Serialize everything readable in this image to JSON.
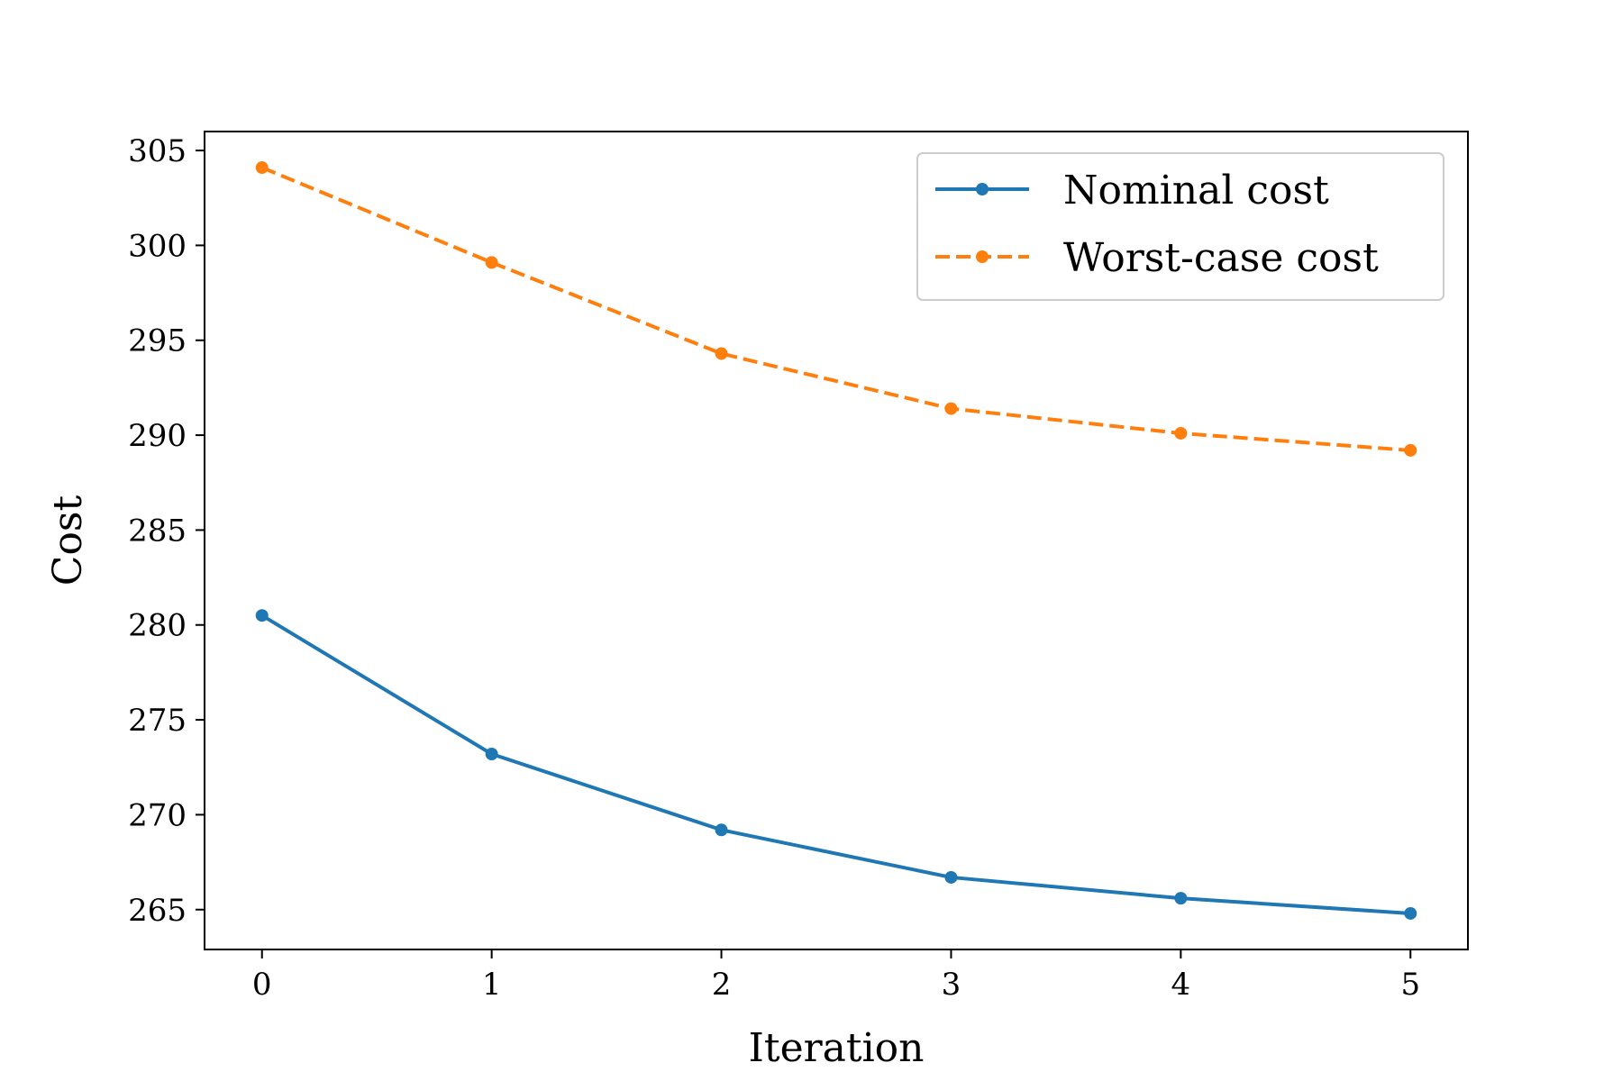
{
  "chart_data": {
    "type": "line",
    "title": "",
    "xlabel": "Iteration",
    "ylabel": "Cost",
    "x": [
      0,
      1,
      2,
      3,
      4,
      5
    ],
    "xlim": [
      -0.25,
      5.25
    ],
    "ylim": [
      262.9,
      306.0
    ],
    "xticks": [
      "0",
      "1",
      "2",
      "3",
      "4",
      "5"
    ],
    "yticks": [
      "265",
      "270",
      "275",
      "280",
      "285",
      "290",
      "295",
      "300",
      "305"
    ],
    "grid": false,
    "legend_position": "top-right",
    "series": [
      {
        "name": "Nominal cost",
        "style": "solid",
        "marker": "circle",
        "color": "#1f77b4",
        "values": [
          280.5,
          273.2,
          269.2,
          266.7,
          265.6,
          264.8
        ]
      },
      {
        "name": "Worst-case cost",
        "style": "dashed",
        "marker": "circle",
        "color": "#ff7f0e",
        "values": [
          304.1,
          299.1,
          294.3,
          291.4,
          290.1,
          289.2
        ]
      }
    ]
  }
}
